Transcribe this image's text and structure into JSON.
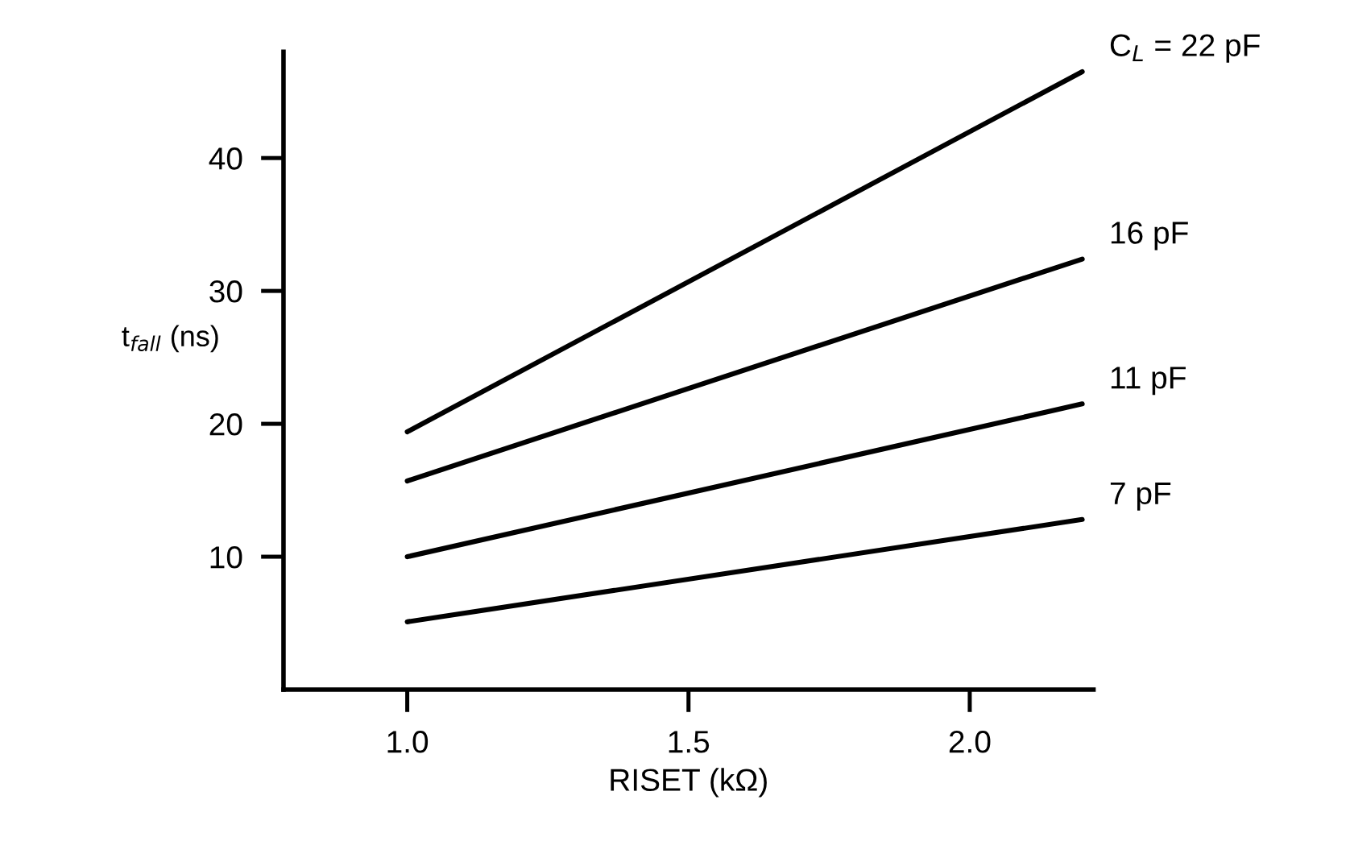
{
  "chart_data": {
    "type": "line",
    "xlabel": "RISET (kΩ)",
    "ylabel": "t$_{fall}$ (ns)",
    "x": [
      1.0,
      2.2
    ],
    "series": [
      {
        "name": "C$_{L}$ = 22 pF",
        "color": "#000000",
        "values": [
          19.4,
          46.5
        ]
      },
      {
        "name": "16 pF",
        "color": "#000000",
        "values": [
          15.7,
          32.4
        ]
      },
      {
        "name": "11 pF",
        "color": "#000000",
        "values": [
          10.0,
          21.5
        ]
      },
      {
        "name": "7 pF",
        "color": "#000000",
        "values": [
          5.1,
          12.8
        ]
      }
    ],
    "xlim": [
      0.78,
      2.22
    ],
    "ylim": [
      0,
      48
    ],
    "xticks": [
      {
        "value": 1.0,
        "label": "1.0"
      },
      1.5,
      {
        "value": 2.0,
        "label": "2.0"
      }
    ],
    "yticks": [
      10,
      20,
      30,
      40
    ],
    "grid": false,
    "legend": false,
    "marker": "none",
    "line_style": "solid"
  }
}
